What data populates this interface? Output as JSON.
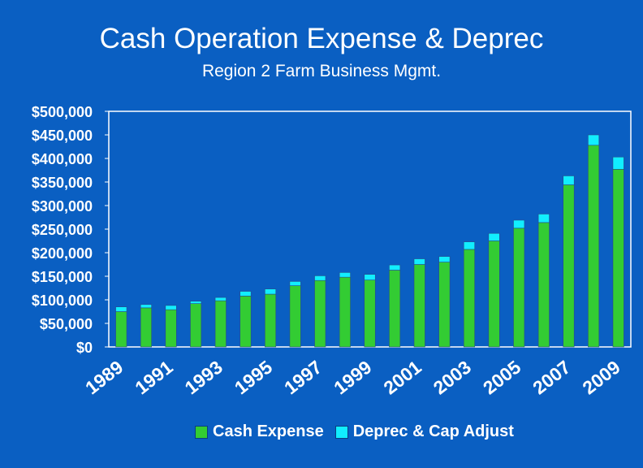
{
  "chart_data": {
    "type": "bar",
    "stacked": true,
    "title": "Cash Operation Expense & Deprec",
    "subtitle": "Region 2 Farm Business Mgmt.",
    "categories": [
      "1989",
      "1990",
      "1991",
      "1992",
      "1993",
      "1994",
      "1995",
      "1996",
      "1997",
      "1998",
      "1999",
      "2000",
      "2001",
      "2002",
      "2003",
      "2004",
      "2005",
      "2006",
      "2007",
      "2008",
      "2009"
    ],
    "tick_labels": [
      "1989",
      "1991",
      "1993",
      "1995",
      "1997",
      "1999",
      "2001",
      "2003",
      "2005",
      "2007",
      "2009"
    ],
    "series": [
      {
        "name": "Cash Expense",
        "color": "#33cc33",
        "values": [
          75000,
          83000,
          79000,
          92000,
          98000,
          108000,
          112000,
          130000,
          141000,
          148000,
          142000,
          163000,
          175000,
          180000,
          207000,
          225000,
          252000,
          264000,
          344000,
          428000,
          377000
        ]
      },
      {
        "name": "Deprec & Cap Adjust",
        "color": "#11eeff",
        "values": [
          10000,
          7000,
          9000,
          5000,
          7000,
          10000,
          11000,
          9000,
          10000,
          10000,
          12000,
          11000,
          12000,
          12000,
          16000,
          16000,
          17000,
          18000,
          19000,
          22000,
          26000
        ]
      }
    ],
    "y_ticks": [
      "$0",
      "$50,000",
      "$100,000",
      "$150,000",
      "$200,000",
      "$250,000",
      "$300,000",
      "$350,000",
      "$400,000",
      "$450,000",
      "$500,000"
    ],
    "ylim": [
      0,
      500000
    ],
    "xlabel": "",
    "ylabel": "",
    "grid": false,
    "legend_position": "bottom"
  }
}
